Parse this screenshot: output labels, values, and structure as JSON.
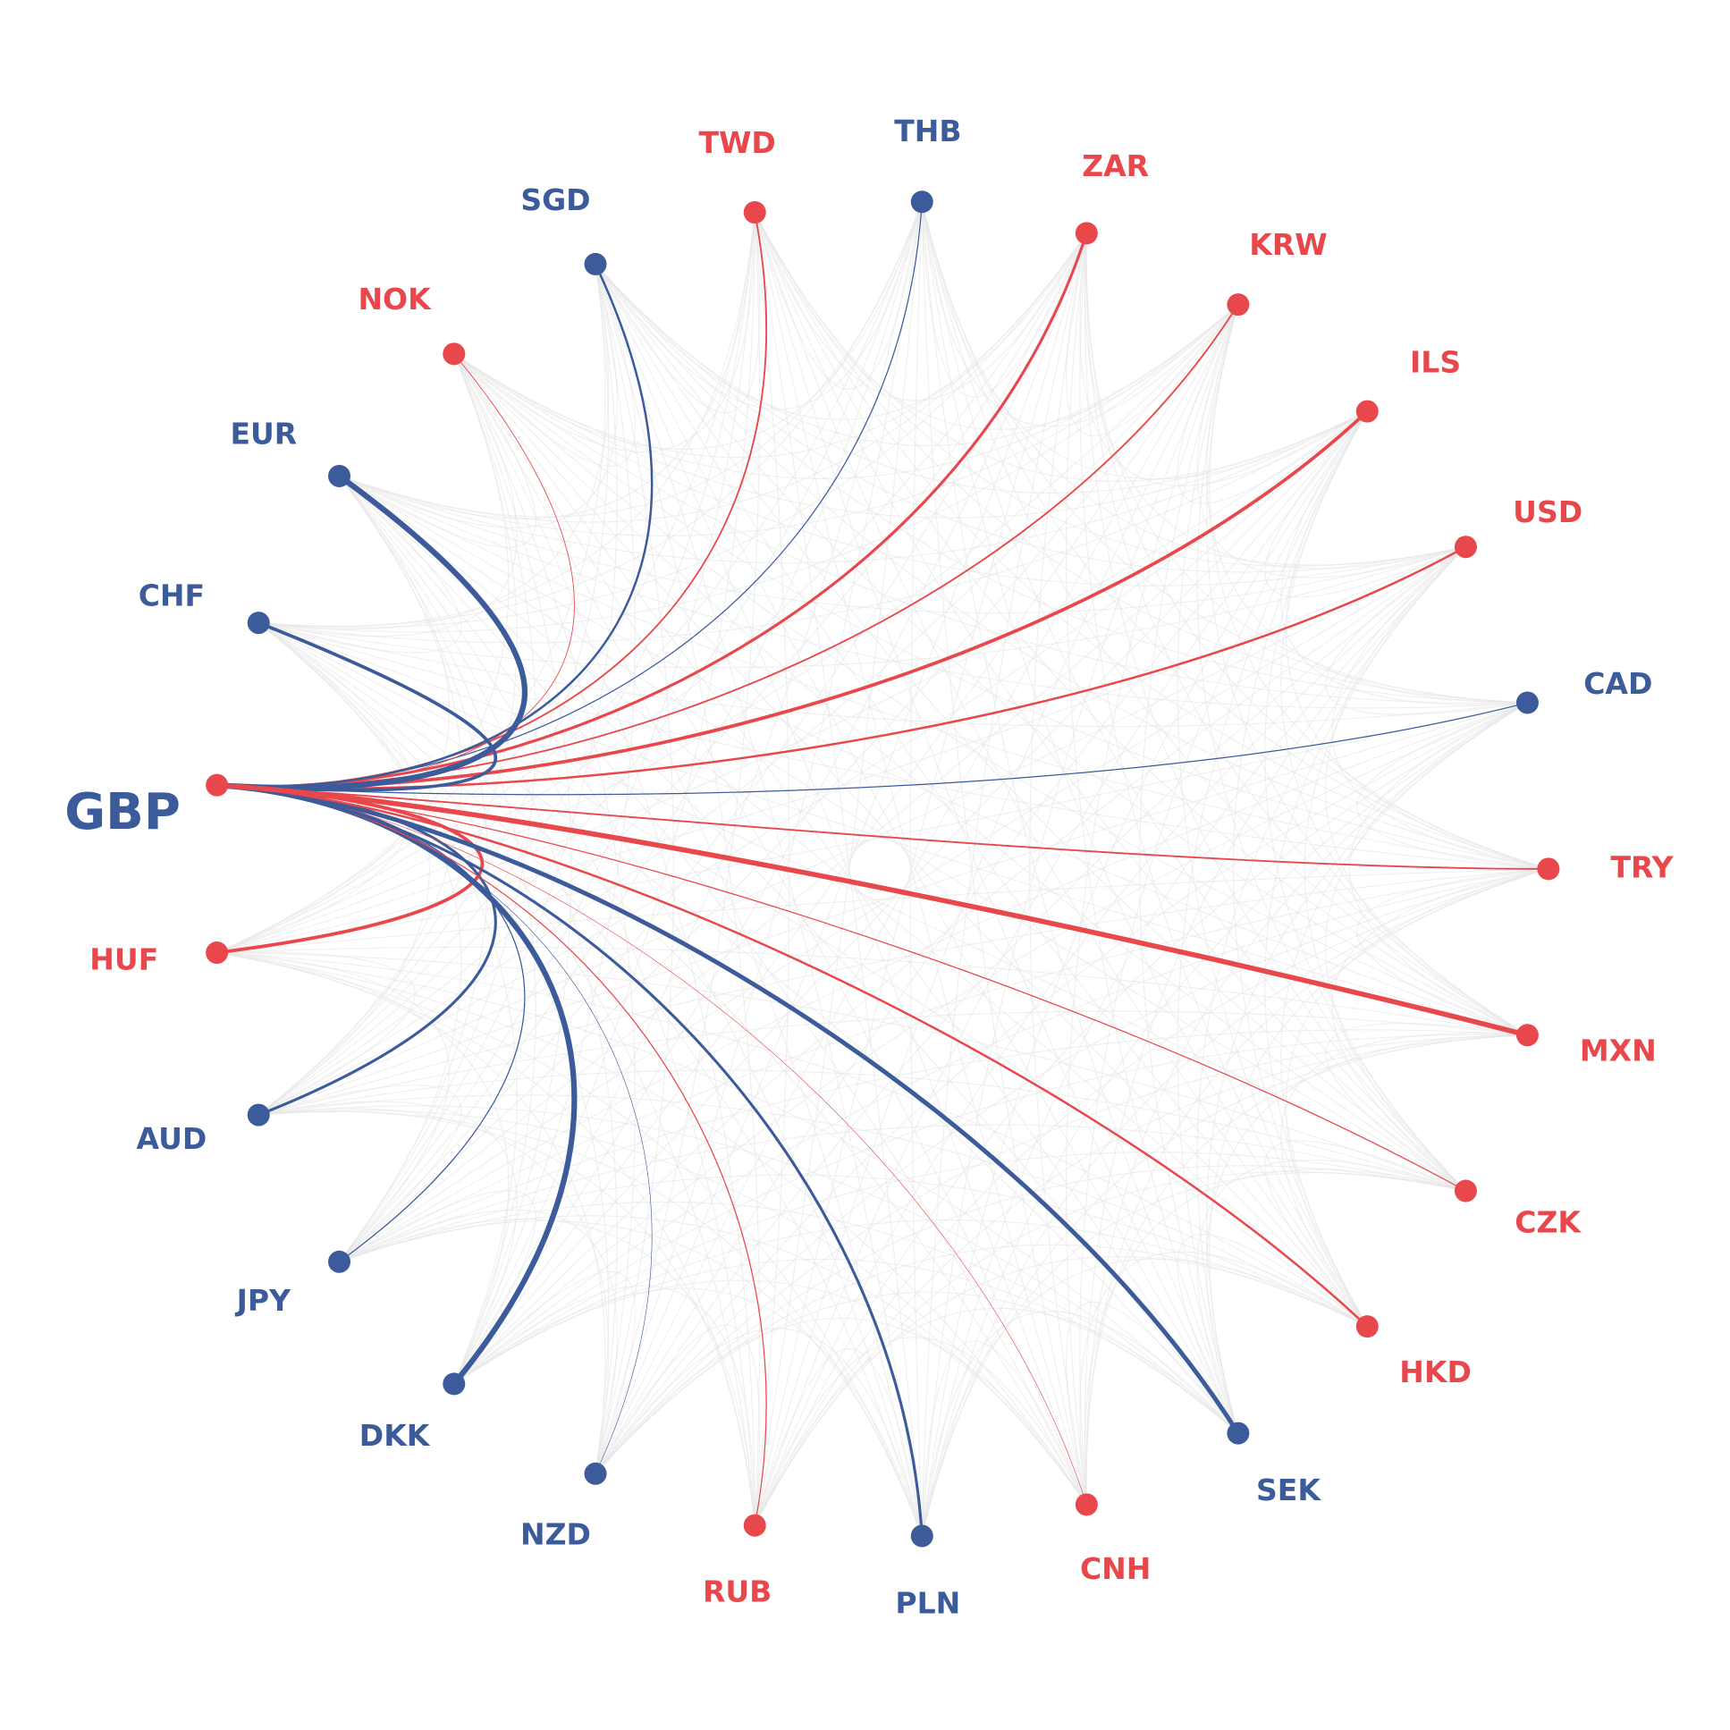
{
  "hub": "GBP",
  "nodes": [
    {
      "label": "TRY",
      "color": "#e8474c"
    },
    {
      "label": "CAD",
      "color": "#3b5b9a"
    },
    {
      "label": "USD",
      "color": "#e8474c"
    },
    {
      "label": "ILS",
      "color": "#e8474c"
    },
    {
      "label": "KRW",
      "color": "#e8474c"
    },
    {
      "label": "ZAR",
      "color": "#e8474c"
    },
    {
      "label": "THB",
      "color": "#3b5b9a"
    },
    {
      "label": "TWD",
      "color": "#e8474c"
    },
    {
      "label": "SGD",
      "color": "#3b5b9a"
    },
    {
      "label": "NOK",
      "color": "#e8474c"
    },
    {
      "label": "EUR",
      "color": "#3b5b9a"
    },
    {
      "label": "CHF",
      "color": "#3b5b9a"
    },
    {
      "label": "GBP",
      "color": "#e8474c",
      "label_color": "#3b5b9a"
    },
    {
      "label": "HUF",
      "color": "#e8474c"
    },
    {
      "label": "AUD",
      "color": "#3b5b9a"
    },
    {
      "label": "JPY",
      "color": "#3b5b9a"
    },
    {
      "label": "DKK",
      "color": "#3b5b9a"
    },
    {
      "label": "NZD",
      "color": "#3b5b9a"
    },
    {
      "label": "RUB",
      "color": "#e8474c"
    },
    {
      "label": "PLN",
      "color": "#3b5b9a"
    },
    {
      "label": "CNH",
      "color": "#e8474c"
    },
    {
      "label": "SEK",
      "color": "#3b5b9a"
    },
    {
      "label": "HKD",
      "color": "#e8474c"
    },
    {
      "label": "CZK",
      "color": "#e8474c"
    },
    {
      "label": "MXN",
      "color": "#e8474c"
    }
  ]
}
